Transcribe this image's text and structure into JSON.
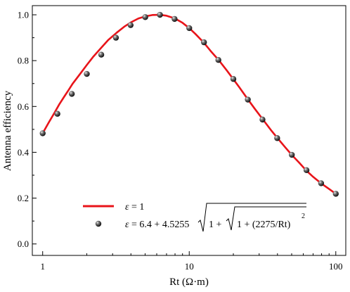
{
  "chart_data": {
    "type": "line",
    "xlabel": "Rt (Ω·m)",
    "ylabel": "Antenna efficiency",
    "xscale": "log",
    "xlim": [
      0.85,
      117
    ],
    "ylim": [
      -0.05,
      1.04
    ],
    "xticks": [
      {
        "value": 1,
        "label": "1"
      },
      {
        "value": 10,
        "label": "10"
      },
      {
        "value": 100,
        "label": "100"
      }
    ],
    "yticks": [
      {
        "value": 0.0,
        "label": "0.0"
      },
      {
        "value": 0.2,
        "label": "0.2"
      },
      {
        "value": 0.4,
        "label": "0.4"
      },
      {
        "value": 0.6,
        "label": "0.6"
      },
      {
        "value": 0.8,
        "label": "0.8"
      },
      {
        "value": 1.0,
        "label": "1.0"
      }
    ],
    "grid": false,
    "legend_position": "bottom-center",
    "series": [
      {
        "name": "ε = 1",
        "legend_prefix": "ε",
        "legend_text": " = 1",
        "style": "line",
        "color": "#e8141a",
        "x": [
          1,
          1.1,
          1.2,
          1.3,
          1.4,
          1.5,
          1.6,
          1.8,
          2,
          2.2,
          2.5,
          2.8,
          3.2,
          3.6,
          4,
          4.5,
          5,
          5.6,
          6.3,
          7,
          8,
          9,
          10,
          11,
          12.6,
          14,
          16,
          18,
          20,
          22,
          25,
          28,
          32,
          36,
          40,
          45,
          50,
          56,
          63,
          70,
          80,
          90,
          100
        ],
        "y": [
          0.483,
          0.53,
          0.571,
          0.61,
          0.642,
          0.671,
          0.699,
          0.742,
          0.781,
          0.815,
          0.855,
          0.89,
          0.922,
          0.948,
          0.967,
          0.984,
          0.993,
          0.999,
          1.0,
          0.996,
          0.984,
          0.965,
          0.942,
          0.917,
          0.878,
          0.842,
          0.8,
          0.758,
          0.719,
          0.683,
          0.633,
          0.59,
          0.541,
          0.498,
          0.462,
          0.423,
          0.389,
          0.356,
          0.32,
          0.293,
          0.263,
          0.24,
          0.219
        ]
      },
      {
        "name": "ε = 6.4 + 4.5255√(1+√(1+(2275/Rt)²))",
        "legend_prefix": "ε",
        "legend_text": " = 6.4 + 4.5255",
        "legend_radicand_a": "1 + ",
        "legend_radicand_b": "1 + (2275/Rt)",
        "legend_exponent": "2",
        "style": "markers",
        "color": "#111111",
        "x": [
          1,
          1.26,
          1.58,
          2,
          2.51,
          3.16,
          3.98,
          5.01,
          6.31,
          7.94,
          10,
          12.6,
          15.8,
          20,
          25.1,
          31.6,
          39.8,
          50.1,
          63.1,
          79.4,
          100
        ],
        "y": [
          0.483,
          0.568,
          0.655,
          0.742,
          0.826,
          0.9,
          0.955,
          0.99,
          1.0,
          0.982,
          0.942,
          0.88,
          0.803,
          0.72,
          0.63,
          0.543,
          0.462,
          0.389,
          0.322,
          0.265,
          0.219
        ]
      }
    ]
  }
}
